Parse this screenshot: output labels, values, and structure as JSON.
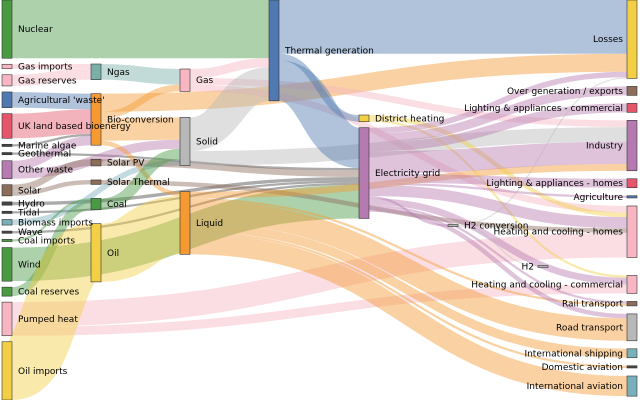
{
  "chart_data": {
    "type": "sankey",
    "title": "",
    "nodes": [
      {
        "id": "nuclear",
        "label": "Nuclear",
        "color": "#4a9a44"
      },
      {
        "id": "gas_imports",
        "label": "Gas imports",
        "color": "#f7b6c2"
      },
      {
        "id": "gas_reserves",
        "label": "Gas reserves",
        "color": "#f7b6c2"
      },
      {
        "id": "agri_waste",
        "label": "Agricultural 'waste'",
        "color": "#4f79b0"
      },
      {
        "id": "uk_bio",
        "label": "UK land based bioenergy",
        "color": "#e5566a"
      },
      {
        "id": "marine_algae",
        "label": "Marine algae",
        "color": "#444444"
      },
      {
        "id": "geothermal",
        "label": "Geothermal",
        "color": "#444444"
      },
      {
        "id": "other_waste",
        "label": "Other waste",
        "color": "#b57ab0"
      },
      {
        "id": "solar",
        "label": "Solar",
        "color": "#8c6d5a"
      },
      {
        "id": "hydro",
        "label": "Hydro",
        "color": "#444444"
      },
      {
        "id": "tidal",
        "label": "Tidal",
        "color": "#444444"
      },
      {
        "id": "biomass_imports",
        "label": "Biomass imports",
        "color": "#7ab0ba"
      },
      {
        "id": "wave",
        "label": "Wave",
        "color": "#444444"
      },
      {
        "id": "coal_imports",
        "label": "Coal imports",
        "color": "#4a9a44"
      },
      {
        "id": "wind",
        "label": "Wind",
        "color": "#4a9a44"
      },
      {
        "id": "coal_reserves",
        "label": "Coal reserves",
        "color": "#4a9a44"
      },
      {
        "id": "pumped_heat",
        "label": "Pumped heat",
        "color": "#f7b6c2"
      },
      {
        "id": "oil_imports",
        "label": "Oil imports",
        "color": "#f2cf44"
      },
      {
        "id": "ngas",
        "label": "Ngas",
        "color": "#7ab0a8"
      },
      {
        "id": "bio_conversion",
        "label": "Bio-conversion",
        "color": "#f59a30"
      },
      {
        "id": "solar_pv",
        "label": "Solar PV",
        "color": "#8c6d5a"
      },
      {
        "id": "solar_thermal",
        "label": "Solar Thermal",
        "color": "#8c6d5a"
      },
      {
        "id": "coal",
        "label": "Coal",
        "color": "#4a9a44"
      },
      {
        "id": "oil",
        "label": "Oil",
        "color": "#f2cf44"
      },
      {
        "id": "gas",
        "label": "Gas",
        "color": "#f7b6c2"
      },
      {
        "id": "solid",
        "label": "Solid",
        "color": "#b8b8b8"
      },
      {
        "id": "liquid",
        "label": "Liquid",
        "color": "#f59a30"
      },
      {
        "id": "thermal_gen",
        "label": "Thermal generation",
        "color": "#4f79b0"
      },
      {
        "id": "district_heating",
        "label": "District heating",
        "color": "#f2cf44"
      },
      {
        "id": "elec_grid",
        "label": "Electricity grid",
        "color": "#b57ab0"
      },
      {
        "id": "h2_conversion",
        "label": "H2 conversion",
        "color": "#b8b8b8"
      },
      {
        "id": "losses",
        "label": "Losses",
        "color": "#f2cf44"
      },
      {
        "id": "over_gen",
        "label": "Over generation / exports",
        "color": "#8c6d5a"
      },
      {
        "id": "lighting_comm",
        "label": "Lighting & appliances - commercial",
        "color": "#e5566a"
      },
      {
        "id": "industry",
        "label": "Industry",
        "color": "#b57ab0"
      },
      {
        "id": "lighting_homes",
        "label": "Lighting & appliances - homes",
        "color": "#e5566a"
      },
      {
        "id": "agriculture",
        "label": "Agriculture",
        "color": "#4f79b0"
      },
      {
        "id": "heating_homes",
        "label": "Heating and cooling - homes",
        "color": "#f7b6c2"
      },
      {
        "id": "h2",
        "label": "H2",
        "color": "#b8b8b8"
      },
      {
        "id": "heating_comm",
        "label": "Heating and cooling - commercial",
        "color": "#f7b6c2"
      },
      {
        "id": "rail",
        "label": "Rail transport",
        "color": "#8c6d5a"
      },
      {
        "id": "road",
        "label": "Road transport",
        "color": "#b8b8b8"
      },
      {
        "id": "intl_shipping",
        "label": "International shipping",
        "color": "#7ab0ba"
      },
      {
        "id": "dom_aviation",
        "label": "Domestic aviation",
        "color": "#444444"
      },
      {
        "id": "intl_aviation",
        "label": "International aviation",
        "color": "#7ab0ba"
      }
    ],
    "links": [
      {
        "source": "nuclear",
        "target": "thermal_gen",
        "value": 52
      },
      {
        "source": "gas_imports",
        "target": "ngas",
        "value": 4
      },
      {
        "source": "gas_reserves",
        "target": "ngas",
        "value": 10
      },
      {
        "source": "agri_waste",
        "target": "bio_conversion",
        "value": 14
      },
      {
        "source": "uk_bio",
        "target": "bio_conversion",
        "value": 22
      },
      {
        "source": "marine_algae",
        "target": "bio_conversion",
        "value": 2
      },
      {
        "source": "geothermal",
        "target": "elec_grid",
        "value": 2
      },
      {
        "source": "other_waste",
        "target": "bio_conversion",
        "value": 8
      },
      {
        "source": "other_waste",
        "target": "solid",
        "value": 8
      },
      {
        "source": "solar",
        "target": "solar_pv",
        "value": 6
      },
      {
        "source": "solar",
        "target": "solar_thermal",
        "value": 4
      },
      {
        "source": "hydro",
        "target": "elec_grid",
        "value": 3
      },
      {
        "source": "tidal",
        "target": "elec_grid",
        "value": 2
      },
      {
        "source": "biomass_imports",
        "target": "solid",
        "value": 5
      },
      {
        "source": "wave",
        "target": "elec_grid",
        "value": 2
      },
      {
        "source": "coal_imports",
        "target": "coal",
        "value": 2
      },
      {
        "source": "wind",
        "target": "elec_grid",
        "value": 30
      },
      {
        "source": "coal_reserves",
        "target": "coal",
        "value": 8
      },
      {
        "source": "pumped_heat",
        "target": "heating_homes",
        "value": 22
      },
      {
        "source": "pumped_heat",
        "target": "heating_comm",
        "value": 8
      },
      {
        "source": "oil_imports",
        "target": "oil",
        "value": 52
      },
      {
        "source": "ngas",
        "target": "gas",
        "value": 14
      },
      {
        "source": "bio_conversion",
        "target": "solid",
        "value": 20
      },
      {
        "source": "bio_conversion",
        "target": "liquid",
        "value": 4
      },
      {
        "source": "bio_conversion",
        "target": "gas",
        "value": 6
      },
      {
        "source": "bio_conversion",
        "target": "losses",
        "value": 16
      },
      {
        "source": "solar_pv",
        "target": "elec_grid",
        "value": 6
      },
      {
        "source": "solar_thermal",
        "target": "heating_homes",
        "value": 4
      },
      {
        "source": "coal",
        "target": "solid",
        "value": 10
      },
      {
        "source": "oil",
        "target": "liquid",
        "value": 52
      },
      {
        "source": "gas",
        "target": "thermal_gen",
        "value": 8
      },
      {
        "source": "gas",
        "target": "heating_homes",
        "value": 6
      },
      {
        "source": "gas",
        "target": "industry",
        "value": 6
      },
      {
        "source": "solid",
        "target": "thermal_gen",
        "value": 30
      },
      {
        "source": "solid",
        "target": "industry",
        "value": 13
      },
      {
        "source": "liquid",
        "target": "road",
        "value": 20
      },
      {
        "source": "liquid",
        "target": "intl_shipping",
        "value": 8
      },
      {
        "source": "liquid",
        "target": "intl_aviation",
        "value": 18
      },
      {
        "source": "liquid",
        "target": "dom_aviation",
        "value": 2
      },
      {
        "source": "liquid",
        "target": "industry",
        "value": 6
      },
      {
        "source": "liquid",
        "target": "rail",
        "value": 2
      },
      {
        "source": "thermal_gen",
        "target": "elec_grid",
        "value": 36
      },
      {
        "source": "thermal_gen",
        "target": "losses",
        "value": 48
      },
      {
        "source": "thermal_gen",
        "target": "district_heating",
        "value": 6
      },
      {
        "source": "district_heating",
        "target": "heating_homes",
        "value": 4
      },
      {
        "source": "district_heating",
        "target": "heating_comm",
        "value": 2
      },
      {
        "source": "elec_grid",
        "target": "over_gen",
        "value": 8
      },
      {
        "source": "elec_grid",
        "target": "lighting_comm",
        "value": 8
      },
      {
        "source": "elec_grid",
        "target": "industry",
        "value": 20
      },
      {
        "source": "elec_grid",
        "target": "lighting_homes",
        "value": 8
      },
      {
        "source": "elec_grid",
        "target": "agriculture",
        "value": 2
      },
      {
        "source": "elec_grid",
        "target": "heating_homes",
        "value": 10
      },
      {
        "source": "elec_grid",
        "target": "heating_comm",
        "value": 6
      },
      {
        "source": "elec_grid",
        "target": "h2_conversion",
        "value": 2
      },
      {
        "source": "elec_grid",
        "target": "road",
        "value": 4
      },
      {
        "source": "elec_grid",
        "target": "rail",
        "value": 2
      },
      {
        "source": "elec_grid",
        "target": "losses",
        "value": 5
      },
      {
        "source": "h2_conversion",
        "target": "h2",
        "value": 1
      },
      {
        "source": "h2_conversion",
        "target": "losses",
        "value": 1
      }
    ]
  }
}
